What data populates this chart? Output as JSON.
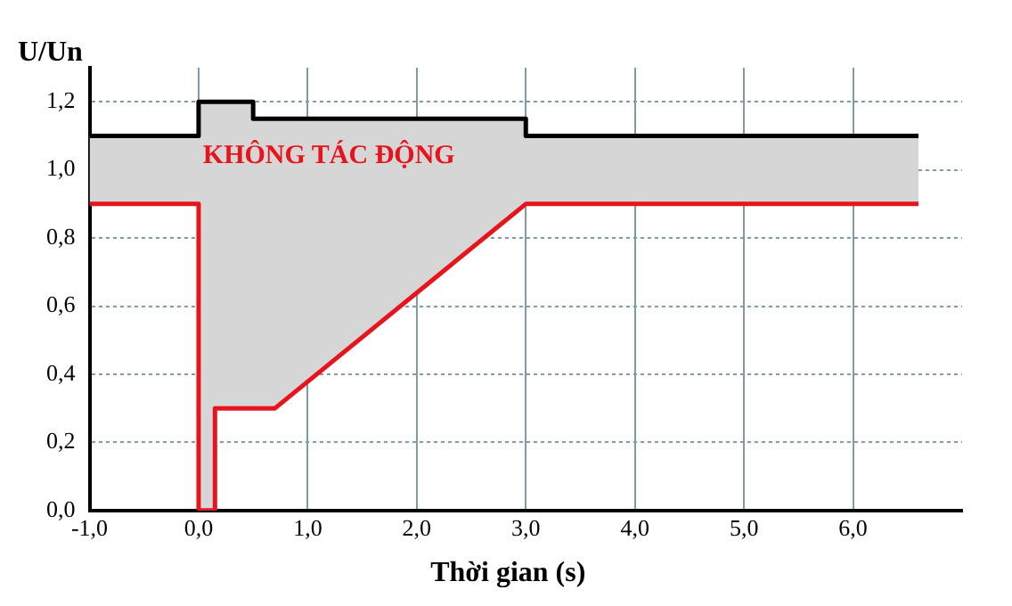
{
  "chart_data": {
    "type": "line",
    "xlabel": "Thời gian (s)",
    "ylabel": "U/Un",
    "x": [
      -1,
      0,
      0,
      0.15,
      0.15,
      0.5,
      0.5,
      0.7,
      3,
      3,
      6.6
    ],
    "series": [
      {
        "color": "#000000",
        "values": [
          1.1,
          1.1,
          1.2,
          1.2,
          1.2,
          1.2,
          1.15,
          1.15,
          1.15,
          1.1,
          1.1
        ]
      },
      {
        "color": "#e8141c",
        "values": [
          0.9,
          0.9,
          0,
          0,
          0.3,
          0.3,
          0.3,
          0.3,
          0.9,
          0.9,
          0.9
        ],
        "lower": [
          0.9,
          0.9,
          0,
          0,
          0.3,
          0.3,
          0.3,
          0.3,
          0.9,
          0.9,
          0.9
        ],
        "upper": [
          1.1,
          1.1,
          1.2,
          1.2,
          1.2,
          1.2,
          1.15,
          1.15,
          1.15,
          1.1,
          1.1
        ]
      }
    ],
    "annotations": [
      "KHÔNG TÁC ĐỘNG"
    ],
    "xlim": [
      -1,
      7
    ],
    "ylim": [
      0,
      1.3
    ],
    "xticks": [
      {
        "value": -1,
        "label": "-1,0"
      },
      {
        "value": 0,
        "label": "0,0"
      },
      {
        "value": 1,
        "label": "1,0"
      },
      {
        "value": 2,
        "label": "2,0"
      },
      {
        "value": 3,
        "label": "3,0"
      },
      {
        "value": 4,
        "label": "4,0"
      },
      {
        "value": 5,
        "label": "5,0"
      },
      {
        "value": 6,
        "label": "6,0"
      }
    ],
    "yticks": [
      {
        "value": 0,
        "label": "0,0"
      },
      {
        "value": 0.2,
        "label": "0,2"
      },
      {
        "value": 0.4,
        "label": "0,4"
      },
      {
        "value": 0.6,
        "label": "0,6"
      },
      {
        "value": 0.8,
        "label": "0,8"
      },
      {
        "value": 1,
        "label": "1,0"
      },
      {
        "value": 1.2,
        "label": "1,2"
      }
    ],
    "grid": true,
    "marker": "none",
    "line_style": "solid"
  }
}
